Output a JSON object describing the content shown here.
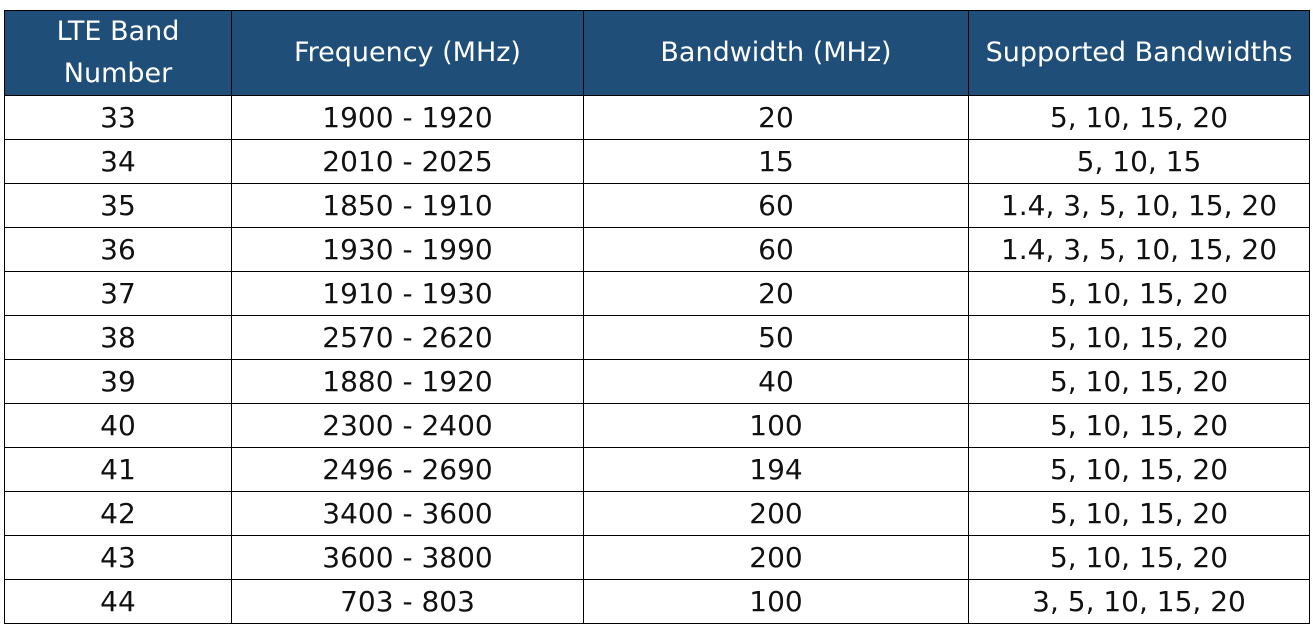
{
  "table": {
    "headers": [
      "LTE Band Number",
      "Frequency (MHz)",
      "Bandwidth (MHz)",
      "Supported Bandwidths"
    ],
    "rows": [
      [
        "33",
        "1900 - 1920",
        "20",
        "5, 10, 15, 20"
      ],
      [
        "34",
        "2010 - 2025",
        "15",
        "5, 10, 15"
      ],
      [
        "35",
        "1850 - 1910",
        "60",
        "1.4, 3, 5, 10, 15, 20"
      ],
      [
        "36",
        "1930 - 1990",
        "60",
        "1.4, 3, 5, 10, 15, 20"
      ],
      [
        "37",
        "1910 - 1930",
        "20",
        "5, 10, 15, 20"
      ],
      [
        "38",
        "2570 - 2620",
        "50",
        "5, 10, 15, 20"
      ],
      [
        "39",
        "1880 - 1920",
        "40",
        "5, 10, 15, 20"
      ],
      [
        "40",
        "2300 - 2400",
        "100",
        "5, 10, 15, 20"
      ],
      [
        "41",
        "2496 - 2690",
        "194",
        "5, 10, 15, 20"
      ],
      [
        "42",
        "3400 - 3600",
        "200",
        "5, 10, 15, 20"
      ],
      [
        "43",
        "3600 - 3800",
        "200",
        "5, 10, 15, 20"
      ],
      [
        "44",
        "703 - 803",
        "100",
        "3, 5, 10, 15, 20"
      ]
    ]
  },
  "colors": {
    "header_background": "#1f4e79",
    "header_text": "#ffffff",
    "border": "#000000",
    "cell_text": "#111111"
  }
}
